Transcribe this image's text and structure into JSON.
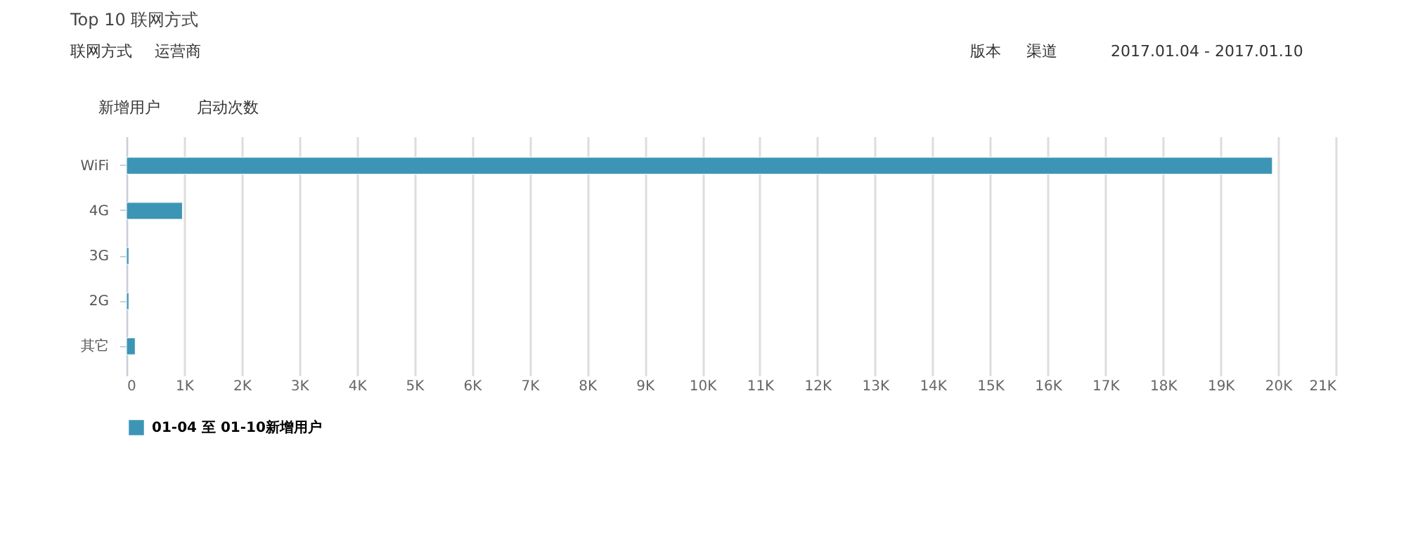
{
  "chart_data": {
    "type": "bar",
    "orientation": "horizontal",
    "title": "Top 10 联网方式",
    "annotations": [
      "联网方式",
      "运营商",
      "版本",
      "渠道",
      "2017.01.04 - 2017.01.10",
      "新增用户",
      "启动次数"
    ],
    "categories": [
      "WiFi",
      "4G",
      "3G",
      "2G",
      "其它"
    ],
    "series": [
      {
        "name": "01-04 至 01-10新增用户",
        "color": "#3d95b5",
        "values": [
          19900,
          970,
          40,
          40,
          150
        ]
      }
    ],
    "xlim": [
      0,
      21000
    ],
    "xticks": [
      0,
      {
        "value": 1000,
        "label": "1K"
      },
      {
        "value": 2000,
        "label": "2K"
      },
      {
        "value": 3000,
        "label": "3K"
      },
      {
        "value": 4000,
        "label": "4K"
      },
      {
        "value": 5000,
        "label": "5K"
      },
      {
        "value": 6000,
        "label": "6K"
      },
      {
        "value": 7000,
        "label": "7K"
      },
      {
        "value": 8000,
        "label": "8K"
      },
      {
        "value": 9000,
        "label": "9K"
      },
      {
        "value": 10000,
        "label": "10K"
      },
      {
        "value": 11000,
        "label": "11K"
      },
      {
        "value": 12000,
        "label": "12K"
      },
      {
        "value": 13000,
        "label": "13K"
      },
      {
        "value": 14000,
        "label": "14K"
      },
      {
        "value": 15000,
        "label": "15K"
      },
      {
        "value": 16000,
        "label": "16K"
      },
      {
        "value": 17000,
        "label": "17K"
      },
      {
        "value": 18000,
        "label": "18K"
      },
      {
        "value": 19000,
        "label": "19K"
      },
      {
        "value": 20000,
        "label": "20K"
      },
      {
        "value": 21000,
        "label": "21K"
      }
    ],
    "grid": "x",
    "legend": "bottom"
  }
}
